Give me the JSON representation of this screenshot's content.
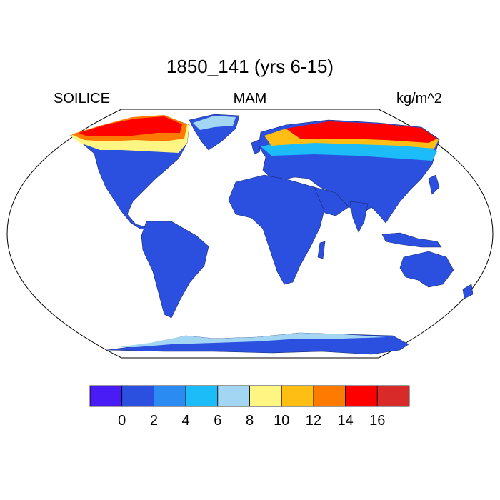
{
  "header": {
    "title": "1850_141 (yrs 6-15)",
    "left_label": "SOILICE",
    "center_label": "MAM",
    "right_label": "kg/m^2"
  },
  "colorbar": {
    "colors": [
      "#4a1cf5",
      "#2b50e0",
      "#2a8cf2",
      "#1cbcf8",
      "#a2d6f3",
      "#fff582",
      "#ffbe13",
      "#ff7a00",
      "#ff0000",
      "#d92a2a"
    ],
    "ticks": [
      "0",
      "2",
      "4",
      "6",
      "8",
      "10",
      "12",
      "14",
      "16"
    ]
  },
  "map": {
    "projection": "robinson",
    "land_color": "#2b50e0"
  }
}
